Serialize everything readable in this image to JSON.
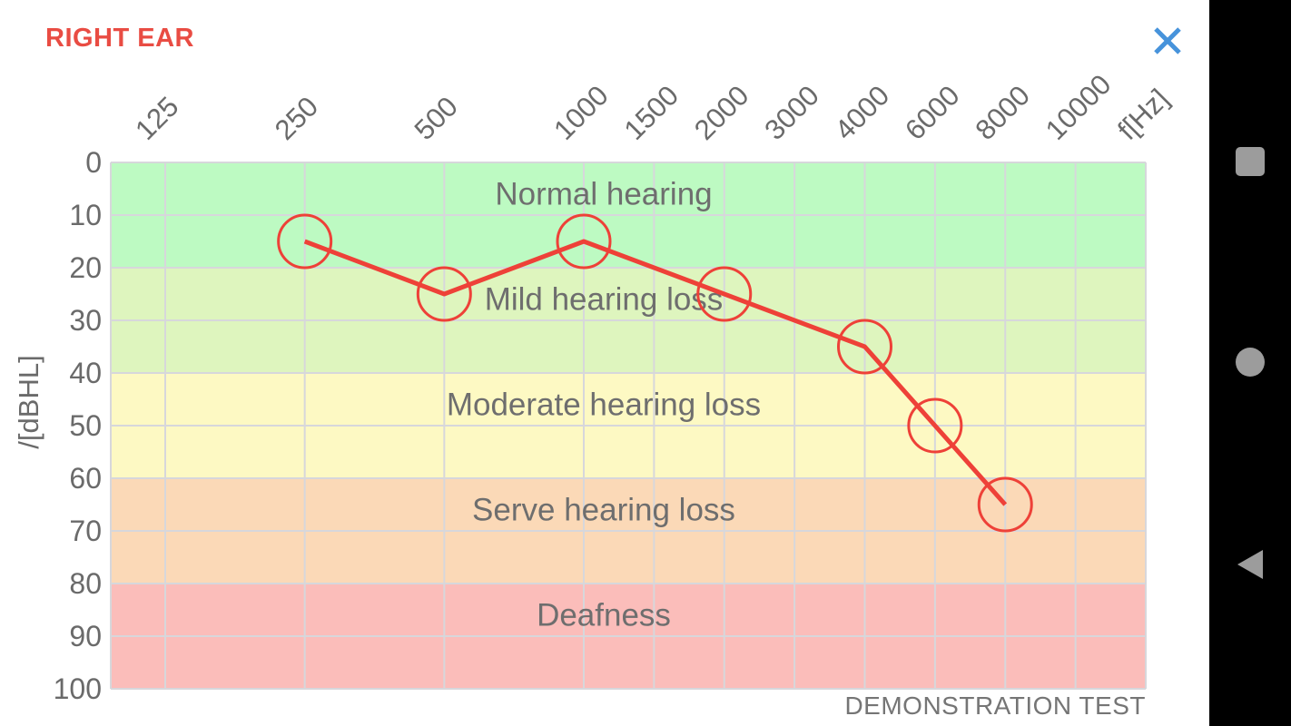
{
  "header": {
    "title": "RIGHT EAR",
    "close_icon": "close-x"
  },
  "chart_data": {
    "type": "line",
    "title": "RIGHT EAR audiogram",
    "x_ticks": [
      "125",
      "250",
      "500",
      "1000",
      "1500",
      "2000",
      "3000",
      "4000",
      "6000",
      "8000",
      "10000"
    ],
    "x_unit": "f[Hz]",
    "y_ticks": [
      "0",
      "10",
      "20",
      "30",
      "40",
      "50",
      "60",
      "70",
      "80",
      "90",
      "100"
    ],
    "y_unit": "/[dBHL]",
    "y_range": [
      0,
      100
    ],
    "grid": true,
    "bands": [
      {
        "label": "Normal hearing",
        "from": 0,
        "to": 20,
        "color": "#bdfac2"
      },
      {
        "label": "Mild hearing loss",
        "from": 20,
        "to": 40,
        "color": "#def5be"
      },
      {
        "label": "Moderate hearing loss",
        "from": 40,
        "to": 60,
        "color": "#fdf9c3"
      },
      {
        "label": "Serve hearing loss",
        "from": 60,
        "to": 80,
        "color": "#fbd9b7"
      },
      {
        "label": "Deafness",
        "from": 80,
        "to": 100,
        "color": "#fbbdba"
      }
    ],
    "series": [
      {
        "name": "right-ear-threshold",
        "color": "#ee4138",
        "marker": "circle-outline",
        "points": [
          {
            "hz": "250",
            "db": 15
          },
          {
            "hz": "500",
            "db": 25
          },
          {
            "hz": "1000",
            "db": 15
          },
          {
            "hz": "2000",
            "db": 25
          },
          {
            "hz": "4000",
            "db": 35
          },
          {
            "hz": "6000",
            "db": 50
          },
          {
            "hz": "8000",
            "db": 65
          }
        ]
      }
    ]
  },
  "footer": {
    "note": "DEMONSTRATION TEST"
  },
  "colors": {
    "title_red": "#e94c43",
    "line_red": "#ee4138",
    "close_blue": "#4793db",
    "grid": "#d7d7db",
    "axis_text": "#6a6a6a",
    "band_text": "#6e6e6e",
    "nav_icon": "#9c9c9c",
    "nav_bg": "#000000"
  },
  "nav_bar": {
    "icons": [
      "recents-square",
      "home-circle",
      "back-triangle"
    ]
  }
}
